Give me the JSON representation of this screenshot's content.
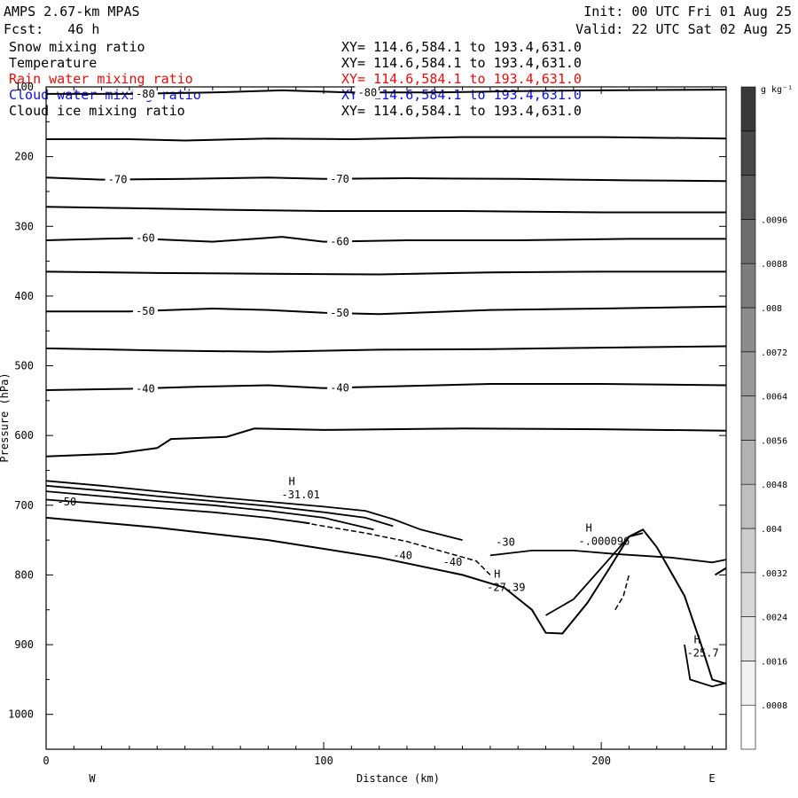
{
  "header": {
    "model": "AMPS 2.67-km MPAS",
    "forecast": "Fcst:   46 h",
    "init": "Init: 00 UTC Fri 01 Aug 25",
    "valid": "Valid: 22 UTC Sat 02 Aug 25"
  },
  "fields": [
    {
      "name": "Snow mixing ratio",
      "xy": "XY= 114.6,584.1 to 193.4,631.0",
      "color": "#000000"
    },
    {
      "name": "Temperature",
      "xy": "XY= 114.6,584.1 to 193.4,631.0",
      "color": "#000000"
    },
    {
      "name": "Rain water mixing ratio",
      "xy": "XY= 114.6,584.1 to 193.4,631.0",
      "color": "#e01010"
    },
    {
      "name": "Cloud water mixing ratio",
      "xy": "XY= 114.6,584.1 to 193.4,631.0",
      "color": "#1010e0"
    },
    {
      "name": "Cloud ice mixing ratio",
      "xy": "XY= 114.6,584.1 to 193.4,631.0",
      "color": "#000000"
    }
  ],
  "chart_data": {
    "type": "line",
    "title": "",
    "xlabel": "Distance (km)",
    "ylabel": "Pressure (hPa)",
    "xlim": [
      0,
      245
    ],
    "ylim": [
      1050,
      100
    ],
    "y_scale": "linear-reversed",
    "x_ticks": [
      "0",
      "100",
      "200"
    ],
    "y_ticks": [
      "100",
      "200",
      "300",
      "400",
      "500",
      "600",
      "700",
      "800",
      "900",
      "1000"
    ],
    "direction_labels": {
      "left": "W",
      "right": "E"
    },
    "grid": false,
    "isotherms": [
      {
        "label": "-80",
        "points": [
          [
            0,
            110
          ],
          [
            30,
            110
          ],
          [
            60,
            108
          ],
          [
            85,
            105
          ],
          [
            110,
            108
          ],
          [
            140,
            108
          ],
          [
            170,
            106
          ],
          [
            200,
            105
          ],
          [
            245,
            104
          ]
        ]
      },
      {
        "label": "",
        "points": [
          [
            0,
            175
          ],
          [
            30,
            175
          ],
          [
            50,
            177
          ],
          [
            80,
            174
          ],
          [
            110,
            175
          ],
          [
            150,
            172
          ],
          [
            200,
            172
          ],
          [
            245,
            174
          ]
        ]
      },
      {
        "label": "-70",
        "points": [
          [
            0,
            230
          ],
          [
            20,
            233
          ],
          [
            50,
            232
          ],
          [
            80,
            230
          ],
          [
            100,
            232
          ],
          [
            130,
            231
          ],
          [
            170,
            232
          ],
          [
            210,
            234
          ],
          [
            245,
            235
          ]
        ]
      },
      {
        "label": "",
        "points": [
          [
            0,
            272
          ],
          [
            30,
            274
          ],
          [
            60,
            276
          ],
          [
            100,
            278
          ],
          [
            150,
            278
          ],
          [
            200,
            280
          ],
          [
            245,
            280
          ]
        ]
      },
      {
        "label": "-60",
        "points": [
          [
            0,
            320
          ],
          [
            30,
            317
          ],
          [
            60,
            322
          ],
          [
            85,
            315
          ],
          [
            100,
            322
          ],
          [
            130,
            320
          ],
          [
            170,
            320
          ],
          [
            210,
            318
          ],
          [
            245,
            318
          ]
        ]
      },
      {
        "label": "",
        "points": [
          [
            0,
            365
          ],
          [
            40,
            367
          ],
          [
            80,
            368
          ],
          [
            120,
            369
          ],
          [
            160,
            366
          ],
          [
            200,
            365
          ],
          [
            245,
            365
          ]
        ]
      },
      {
        "label": "-50",
        "points": [
          [
            0,
            422
          ],
          [
            30,
            422
          ],
          [
            60,
            418
          ],
          [
            80,
            420
          ],
          [
            100,
            424
          ],
          [
            120,
            426
          ],
          [
            160,
            420
          ],
          [
            200,
            418
          ],
          [
            245,
            415
          ]
        ]
      },
      {
        "label": "",
        "points": [
          [
            0,
            475
          ],
          [
            40,
            478
          ],
          [
            80,
            480
          ],
          [
            120,
            477
          ],
          [
            160,
            476
          ],
          [
            200,
            474
          ],
          [
            245,
            472
          ]
        ]
      },
      {
        "label": "-40",
        "points": [
          [
            0,
            535
          ],
          [
            30,
            533
          ],
          [
            55,
            530
          ],
          [
            80,
            528
          ],
          [
            100,
            532
          ],
          [
            120,
            530
          ],
          [
            160,
            526
          ],
          [
            200,
            526
          ],
          [
            245,
            528
          ]
        ]
      },
      {
        "label": "",
        "points": [
          [
            0,
            630
          ],
          [
            25,
            626
          ],
          [
            40,
            618
          ],
          [
            45,
            605
          ],
          [
            65,
            602
          ],
          [
            75,
            590
          ],
          [
            100,
            592
          ],
          [
            150,
            590
          ],
          [
            200,
            591
          ],
          [
            245,
            593
          ]
        ]
      }
    ],
    "annotations": [
      {
        "marker": "H",
        "value": "-31.01",
        "x": 88,
        "y": 690
      },
      {
        "marker": "H",
        "value": "-.000096",
        "x": 195,
        "y": 757
      },
      {
        "marker": "H",
        "value": "-27.39",
        "x": 162,
        "y": 823
      },
      {
        "marker": "H",
        "value": "-25.7",
        "x": 234,
        "y": 917
      }
    ],
    "contour_labels": [
      {
        "text": "-50",
        "x": 4,
        "y": 700
      },
      {
        "text": "-40",
        "x": 125,
        "y": 777
      },
      {
        "text": "-40",
        "x": 143,
        "y": 787
      },
      {
        "text": "-30",
        "x": 162,
        "y": 758
      }
    ],
    "colorbar": {
      "unit": "g kg⁻¹",
      "ticks": [
        ".0008",
        ".0016",
        ".0024",
        ".0032",
        ".004",
        ".0048",
        ".0056",
        ".0064",
        ".0072",
        ".008",
        ".0088",
        ".0096"
      ],
      "colors": [
        "#ffffff",
        "#f2f2f2",
        "#e6e6e6",
        "#d8d8d8",
        "#cccccc",
        "#bfbfbf",
        "#b2b2b2",
        "#a6a6a6",
        "#999999",
        "#8c8c8c",
        "#7d7d7d",
        "#6e6e6e",
        "#5a5a5a",
        "#484848",
        "#393939"
      ]
    }
  }
}
